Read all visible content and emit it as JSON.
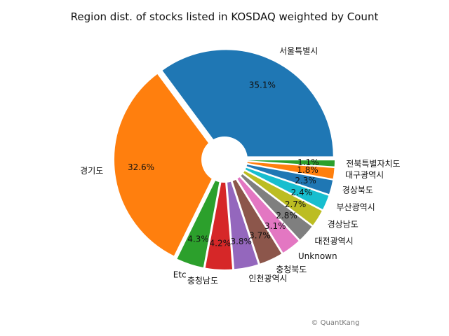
{
  "chart_data": {
    "type": "pie",
    "title": "Region dist. of stocks listed in KOSDAQ weighted by Count",
    "categories": [
      "서울특별시",
      "경기도",
      "Etc",
      "충청남도",
      "인천광역시",
      "충청북도",
      "Unknown",
      "대전광역시",
      "경상남도",
      "부산광역시",
      "경상북도",
      "대구광역시",
      "전북특별자치도"
    ],
    "values": [
      35.1,
      32.6,
      4.3,
      4.2,
      3.8,
      3.7,
      3.1,
      2.8,
      2.7,
      2.4,
      2.3,
      1.8,
      1.1
    ],
    "labels": [
      "35.1%",
      "32.6%",
      "4.3%",
      "4.2%",
      "3.8%",
      "3.7%",
      "3.1%",
      "2.8%",
      "2.7%",
      "2.4%",
      "2.3%",
      "1.8%",
      "1.1%"
    ],
    "colors": [
      "#1f77b4",
      "#ff7f0e",
      "#2ca02c",
      "#d62728",
      "#9467bd",
      "#8c564b",
      "#e377c2",
      "#7f7f7f",
      "#bcbd22",
      "#17becf",
      "#1f77b4",
      "#ff7f0e",
      "#2ca02c"
    ],
    "start_angle_deg": 0,
    "direction": "counterclockwise",
    "exploded": true,
    "donut_hole": true
  },
  "credit": "© QuantKang"
}
